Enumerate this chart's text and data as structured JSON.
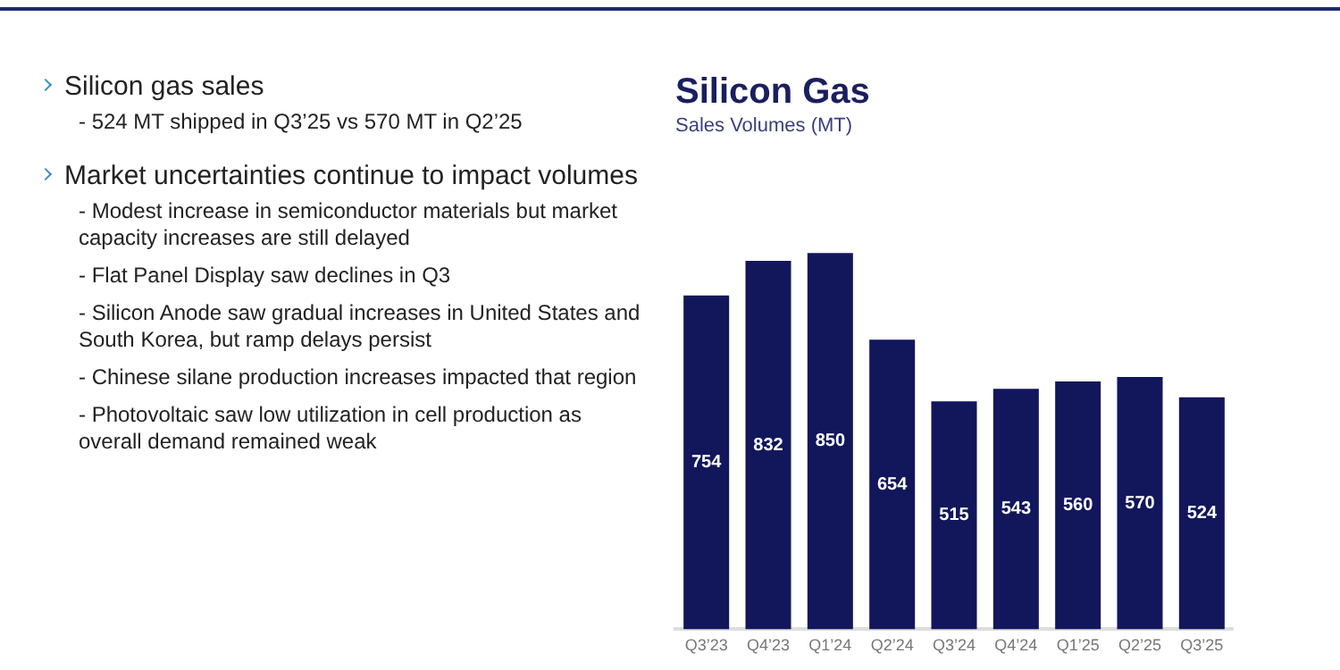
{
  "chart_data": {
    "type": "bar",
    "title": "Silicon Gas",
    "subtitle": "Sales Volumes (MT)",
    "categories": [
      "Q3’23",
      "Q4’23",
      "Q1’24",
      "Q2’24",
      "Q3’24",
      "Q4’24",
      "Q1’25",
      "Q2’25",
      "Q3’25"
    ],
    "values": [
      754,
      832,
      850,
      654,
      515,
      543,
      560,
      570,
      524
    ],
    "color": "#12175c",
    "data_labels": true,
    "grid": false,
    "legend": false,
    "annotations": [
      "Silicon gas sales",
      "- 524 MT shipped in Q3’25 vs 570 MT in Q2’25",
      "Market uncertainties continue to impact volumes",
      "- Modest increase in semiconductor materials but market capacity increases are still delayed",
      "- Flat Panel Display saw declines in Q3",
      "- Silicon Anode saw gradual increases in United States and South Korea, but ramp delays persist",
      "- Chinese silane production increases impacted that region",
      "- Photovoltaic saw low utilization in cell production as overall demand remained weak"
    ]
  }
}
